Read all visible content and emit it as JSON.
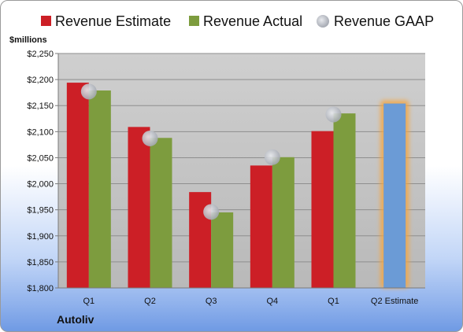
{
  "chart_data": {
    "type": "bar",
    "unit_label": "$millions",
    "company": "Autoliv",
    "categories": [
      "Q1",
      "Q2",
      "Q3",
      "Q4",
      "Q1",
      "Q2 Estimate"
    ],
    "series": [
      {
        "name": "Revenue Estimate",
        "color": "#cc1f26",
        "values": [
          2194,
          2109,
          1984,
          2035,
          2101,
          null
        ]
      },
      {
        "name": "Revenue Actual",
        "color": "#7d9c3e",
        "values": [
          2179,
          2088,
          1945,
          2051,
          2135,
          null
        ]
      },
      {
        "name": "Revenue GAAP",
        "color": "#b8bcc6",
        "values": [
          2177,
          2087,
          1946,
          2051,
          2133,
          null
        ]
      }
    ],
    "estimate_bar": {
      "category": "Q2 Estimate",
      "value": 2154,
      "color": "#6b9bd6",
      "glow": "#f5a640"
    },
    "ylim": [
      1800,
      2250
    ],
    "yticks": [
      1800,
      1850,
      1900,
      1950,
      2000,
      2050,
      2100,
      2150,
      2200,
      2250
    ],
    "ytick_labels": [
      "$1,800",
      "$1,850",
      "$1,900",
      "$1,950",
      "$2,000",
      "$2,050",
      "$2,100",
      "$2,150",
      "$2,200",
      "$2,250"
    ],
    "grid": true,
    "legend_position": "top"
  }
}
